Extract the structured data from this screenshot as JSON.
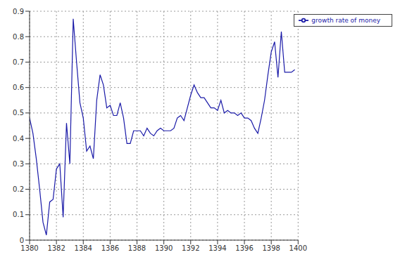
{
  "chart_data": {
    "type": "line",
    "x": [
      1380,
      1380.25,
      1380.5,
      1380.75,
      1381,
      1381.25,
      1381.5,
      1381.75,
      1382,
      1382.25,
      1382.5,
      1382.75,
      1383,
      1383.25,
      1383.5,
      1383.75,
      1384,
      1384.25,
      1384.5,
      1384.75,
      1385,
      1385.25,
      1385.5,
      1385.75,
      1386,
      1386.25,
      1386.5,
      1386.75,
      1387,
      1387.25,
      1387.5,
      1387.75,
      1388,
      1388.25,
      1388.5,
      1388.75,
      1389,
      1389.25,
      1389.5,
      1389.75,
      1390,
      1390.25,
      1390.5,
      1390.75,
      1391,
      1391.25,
      1391.5,
      1391.75,
      1392,
      1392.25,
      1392.5,
      1392.75,
      1393,
      1393.25,
      1393.5,
      1393.75,
      1394,
      1394.25,
      1394.5,
      1394.75,
      1395,
      1395.25,
      1395.5,
      1395.75,
      1396,
      1396.25,
      1396.5,
      1396.75,
      1397,
      1397.25,
      1397.5,
      1397.75,
      1398,
      1398.25,
      1398.5,
      1398.75,
      1399,
      1399.25,
      1399.5,
      1399.75
    ],
    "series": [
      {
        "name": "growth rate of money",
        "color": "#1a1aa8",
        "values": [
          0.48,
          0.42,
          0.32,
          0.2,
          0.07,
          0.02,
          0.15,
          0.16,
          0.28,
          0.3,
          0.09,
          0.46,
          0.3,
          0.87,
          0.7,
          0.54,
          0.48,
          0.35,
          0.37,
          0.32,
          0.55,
          0.65,
          0.61,
          0.52,
          0.53,
          0.49,
          0.49,
          0.54,
          0.48,
          0.38,
          0.38,
          0.43,
          0.43,
          0.43,
          0.41,
          0.44,
          0.42,
          0.41,
          0.43,
          0.44,
          0.43,
          0.43,
          0.43,
          0.44,
          0.48,
          0.49,
          0.47,
          0.52,
          0.57,
          0.61,
          0.58,
          0.56,
          0.56,
          0.54,
          0.52,
          0.52,
          0.51,
          0.55,
          0.5,
          0.51,
          0.5,
          0.5,
          0.49,
          0.5,
          0.48,
          0.48,
          0.47,
          0.44,
          0.42,
          0.48,
          0.55,
          0.65,
          0.74,
          0.78,
          0.64,
          0.82,
          0.66,
          0.66,
          0.66,
          0.67
        ]
      }
    ],
    "xlim": [
      1380,
      1400
    ],
    "xticks": [
      1380,
      1382,
      1384,
      1386,
      1388,
      1390,
      1392,
      1394,
      1396,
      1398,
      1400
    ],
    "ylim": [
      0,
      0.9
    ],
    "yticks": [
      0,
      0.1,
      0.2,
      0.3,
      0.4,
      0.5,
      0.6,
      0.7,
      0.8,
      0.9
    ],
    "grid": true,
    "legend": "top-right"
  }
}
